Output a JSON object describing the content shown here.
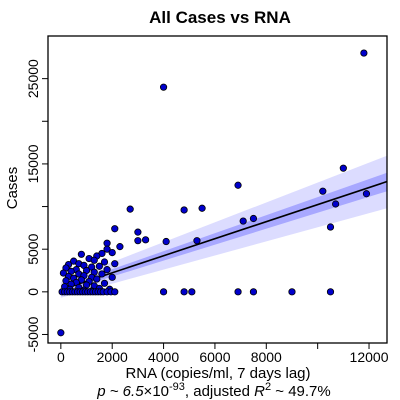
{
  "chart_data": {
    "type": "scatter",
    "title": "All Cases vs RNA",
    "xlabel": "RNA (copies/ml, 7 days lag)",
    "ylabel": "Cases",
    "xlim": [
      -500,
      12700
    ],
    "ylim": [
      -6000,
      30000
    ],
    "x_ticks": [
      0,
      2000,
      4000,
      6000,
      8000,
      12000
    ],
    "y_ticks": [
      -5000,
      0,
      5000,
      15000,
      25000
    ],
    "x_tick_labels": [
      "0",
      "2000",
      "4000",
      "6000",
      "8000",
      "12000"
    ],
    "y_tick_labels": [
      "-5000",
      "0",
      "5000",
      "15000",
      "25000"
    ],
    "annotation": {
      "p_prefix": "p ~ 6.5",
      "times": "×",
      "p_base": "10",
      "p_exp": "-93",
      "r2_prefix": ", adjusted ",
      "r2_var": "R",
      "r2_exp": "2",
      "r2_suffix": " ~ 49.7%"
    },
    "regression": {
      "intercept": 230,
      "slope": 1.0
    },
    "band_inner": [
      [
        0,
        -80,
        540
      ],
      [
        12700,
        11800,
        13960
      ]
    ],
    "band_outer": [
      [
        0,
        -700,
        1160
      ],
      [
        12700,
        9800,
        15960
      ]
    ],
    "colors": {
      "point_fill": "#0000cc",
      "point_stroke": "#000000",
      "line": "#000000",
      "band_inner": "#a8a8ff",
      "band_outer": "#dcdcff"
    },
    "grid": false,
    "series": [
      {
        "points": [
          [
            11800,
            28000
          ],
          [
            4000,
            24000
          ],
          [
            11000,
            14500
          ],
          [
            6900,
            12500
          ],
          [
            10200,
            11800
          ],
          [
            11900,
            11500
          ],
          [
            10700,
            10300
          ],
          [
            2700,
            9700
          ],
          [
            4800,
            9600
          ],
          [
            5500,
            9800
          ],
          [
            7500,
            8600
          ],
          [
            7100,
            8300
          ],
          [
            10500,
            7600
          ],
          [
            2100,
            7400
          ],
          [
            3000,
            7000
          ],
          [
            3300,
            6100
          ],
          [
            3000,
            6000
          ],
          [
            5300,
            6000
          ],
          [
            4100,
            5900
          ],
          [
            1800,
            5700
          ],
          [
            2300,
            5300
          ],
          [
            1800,
            5000
          ],
          [
            2000,
            4600
          ],
          [
            1600,
            4500
          ],
          [
            800,
            4400
          ],
          [
            1400,
            4200
          ],
          [
            1100,
            3900
          ],
          [
            500,
            3600
          ],
          [
            1300,
            3700
          ],
          [
            1700,
            3500
          ],
          [
            2100,
            3300
          ],
          [
            700,
            3300
          ],
          [
            300,
            3200
          ],
          [
            900,
            3100
          ],
          [
            1500,
            3000
          ],
          [
            1200,
            2900
          ],
          [
            200,
            2800
          ],
          [
            600,
            2600
          ],
          [
            1000,
            2500
          ],
          [
            1800,
            2600
          ],
          [
            400,
            2400
          ],
          [
            1300,
            2300
          ],
          [
            100,
            2200
          ],
          [
            700,
            2100
          ],
          [
            1600,
            2100
          ],
          [
            900,
            1900
          ],
          [
            300,
            1800
          ],
          [
            1200,
            1700
          ],
          [
            500,
            1600
          ],
          [
            2000,
            1700
          ],
          [
            1400,
            1500
          ],
          [
            800,
            1400
          ],
          [
            200,
            1300
          ],
          [
            1100,
            1200
          ],
          [
            600,
            1100
          ],
          [
            1700,
            1000
          ],
          [
            400,
            900
          ],
          [
            1000,
            800
          ],
          [
            1300,
            700
          ],
          [
            150,
            600
          ],
          [
            700,
            500
          ],
          [
            1500,
            400
          ],
          [
            1900,
            300
          ],
          [
            350,
            300
          ],
          [
            900,
            200
          ],
          [
            1200,
            100
          ],
          [
            50,
            0
          ],
          [
            150,
            0
          ],
          [
            250,
            0
          ],
          [
            350,
            0
          ],
          [
            450,
            0
          ],
          [
            550,
            0
          ],
          [
            650,
            0
          ],
          [
            750,
            0
          ],
          [
            850,
            0
          ],
          [
            950,
            0
          ],
          [
            1050,
            0
          ],
          [
            1150,
            0
          ],
          [
            1250,
            0
          ],
          [
            1350,
            0
          ],
          [
            1450,
            0
          ],
          [
            1550,
            0
          ],
          [
            1650,
            0
          ],
          [
            1800,
            0
          ],
          [
            1950,
            0
          ],
          [
            2100,
            0
          ],
          [
            4000,
            0
          ],
          [
            4800,
            0
          ],
          [
            5100,
            0
          ],
          [
            6900,
            0
          ],
          [
            7500,
            0
          ],
          [
            9000,
            0
          ],
          [
            10500,
            0
          ],
          [
            0,
            -4800
          ]
        ]
      }
    ]
  }
}
